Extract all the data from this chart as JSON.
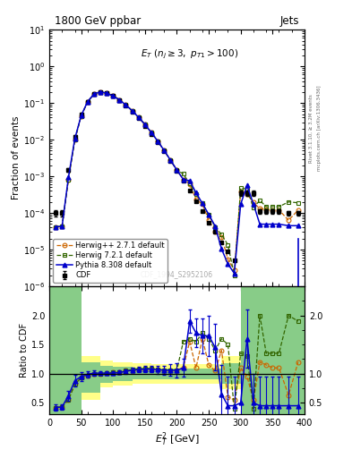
{
  "title_left": "1800 GeV ppbar",
  "title_right": "Jets",
  "annotation": "E_T (n_j ≥ 3, p_{T1}>100)",
  "watermark": "CDF_1994_S2952106",
  "right_label1": "Rivet 3.1.10, ≥ 3.2M events",
  "right_label2": "mcplots.cern.ch [arXiv:1306.3436]",
  "xlabel": "$E_T^2$ [GeV]",
  "ylabel_main": "Fraction of events",
  "ylabel_ratio": "Ratio to CDF",
  "xmin": 0,
  "xmax": 400,
  "cdf_x": [
    10,
    20,
    30,
    40,
    50,
    60,
    70,
    80,
    90,
    100,
    110,
    120,
    130,
    140,
    150,
    160,
    170,
    180,
    190,
    200,
    210,
    220,
    230,
    240,
    250,
    260,
    270,
    280,
    290,
    300,
    310,
    320,
    330,
    340,
    350,
    360,
    375,
    390
  ],
  "cdf_y": [
    0.0001,
    0.0001,
    0.0015,
    0.012,
    0.048,
    0.11,
    0.175,
    0.2,
    0.185,
    0.155,
    0.12,
    0.085,
    0.058,
    0.038,
    0.024,
    0.0145,
    0.0085,
    0.0048,
    0.0026,
    0.0014,
    0.00075,
    0.0004,
    0.00021,
    0.00011,
    5.5e-05,
    3e-05,
    1.6e-05,
    9e-06,
    5e-06,
    0.00035,
    0.00035,
    0.00035,
    0.00011,
    0.00011,
    0.00011,
    0.00011,
    0.0001,
    0.0001
  ],
  "cdf_yerr": [
    2e-05,
    2e-05,
    0.0002,
    0.0015,
    0.005,
    0.008,
    0.01,
    0.01,
    0.01,
    0.008,
    0.006,
    0.004,
    0.0025,
    0.0015,
    0.001,
    0.0006,
    0.00035,
    0.0002,
    0.0001,
    6e-05,
    3e-05,
    1.5e-05,
    8e-06,
    4e-06,
    2e-06,
    1e-06,
    6e-07,
    3e-07,
    2e-07,
    5e-05,
    5e-05,
    5e-05,
    1.5e-05,
    1.5e-05,
    1.5e-05,
    1.5e-05,
    1.5e-05,
    1.5e-05
  ],
  "herwig_color": "#cc6600",
  "herwig7_color": "#336600",
  "pythia_color": "#0000cc",
  "ratio_herwig_x": [
    10,
    20,
    30,
    40,
    50,
    60,
    70,
    80,
    90,
    100,
    110,
    120,
    130,
    140,
    150,
    160,
    170,
    180,
    190,
    200,
    210,
    220,
    230,
    240,
    250,
    260,
    270,
    280,
    290,
    300,
    310,
    320,
    330,
    340,
    350,
    360,
    375,
    390
  ],
  "ratio_herwig_y": [
    0.42,
    0.43,
    0.55,
    0.82,
    0.93,
    0.97,
    1.0,
    1.0,
    1.01,
    1.02,
    1.02,
    1.05,
    1.06,
    1.07,
    1.08,
    1.08,
    1.07,
    1.05,
    1.05,
    1.05,
    1.1,
    1.55,
    1.1,
    1.6,
    1.15,
    1.05,
    1.4,
    0.6,
    0.55,
    1.1,
    0.95,
    0.55,
    1.2,
    1.15,
    1.1,
    1.1,
    0.63,
    1.2
  ],
  "ratio_herwig7_x": [
    10,
    20,
    30,
    40,
    50,
    60,
    70,
    80,
    90,
    100,
    110,
    120,
    130,
    140,
    150,
    160,
    170,
    180,
    190,
    200,
    210,
    220,
    230,
    240,
    250,
    260,
    270,
    280,
    290,
    300,
    310,
    320,
    330,
    340,
    350,
    360,
    375,
    390
  ],
  "ratio_herwig7_y": [
    0.42,
    0.43,
    0.55,
    0.82,
    0.93,
    0.97,
    1.0,
    1.0,
    1.01,
    1.02,
    1.02,
    1.05,
    1.07,
    1.08,
    1.09,
    1.09,
    1.08,
    1.06,
    1.06,
    1.06,
    1.55,
    1.6,
    1.55,
    1.7,
    1.6,
    1.4,
    1.6,
    1.5,
    0.4,
    1.35,
    1.3,
    0.4,
    2.0,
    1.35,
    1.35,
    1.35,
    2.0,
    1.9
  ],
  "ratio_pythia_x": [
    10,
    20,
    30,
    40,
    50,
    60,
    70,
    80,
    90,
    100,
    110,
    120,
    130,
    140,
    150,
    160,
    170,
    180,
    190,
    200,
    210,
    220,
    230,
    240,
    250,
    260,
    270,
    280,
    290,
    300,
    310,
    320,
    330,
    340,
    350,
    360,
    375,
    390
  ],
  "ratio_pythia_y": [
    0.42,
    0.43,
    0.62,
    0.88,
    0.95,
    0.99,
    1.01,
    1.01,
    1.01,
    1.01,
    1.02,
    1.04,
    1.06,
    1.07,
    1.08,
    1.08,
    1.07,
    1.06,
    1.06,
    1.06,
    1.1,
    1.9,
    1.7,
    1.65,
    1.65,
    1.45,
    0.65,
    0.45,
    0.45,
    0.5,
    1.6,
    0.5,
    0.45,
    0.45,
    0.45,
    0.45,
    0.45,
    0.45
  ],
  "ratio_pythia_err": [
    0.05,
    0.05,
    0.08,
    0.1,
    0.08,
    0.05,
    0.04,
    0.03,
    0.03,
    0.03,
    0.03,
    0.04,
    0.04,
    0.05,
    0.05,
    0.06,
    0.07,
    0.08,
    0.1,
    0.12,
    0.15,
    0.2,
    0.25,
    0.3,
    0.35,
    0.4,
    0.5,
    0.5,
    0.5,
    0.5,
    0.5,
    0.5,
    0.5,
    0.5,
    0.5,
    0.5,
    0.5,
    0.5
  ],
  "band_x_edges": [
    0,
    30,
    50,
    80,
    100,
    130,
    160,
    200,
    240,
    270,
    300,
    350,
    400
  ],
  "band_yellow_lo": [
    0.3,
    0.3,
    0.55,
    0.77,
    0.8,
    0.82,
    0.83,
    0.83,
    0.83,
    0.73,
    0.3,
    0.3,
    0.3
  ],
  "band_yellow_hi": [
    2.5,
    2.5,
    1.3,
    1.22,
    1.2,
    1.18,
    1.17,
    1.17,
    1.17,
    1.3,
    2.5,
    2.5,
    2.5
  ],
  "band_green_lo": [
    0.3,
    0.3,
    0.68,
    0.85,
    0.88,
    0.9,
    0.91,
    0.91,
    0.91,
    0.82,
    0.3,
    0.3,
    0.3
  ],
  "band_green_hi": [
    2.5,
    2.5,
    1.2,
    1.13,
    1.12,
    1.1,
    1.09,
    1.09,
    1.09,
    1.18,
    2.5,
    2.5,
    2.5
  ],
  "ratio_ylim": [
    0.3,
    2.5
  ],
  "ratio_yticks": [
    0.5,
    1.0,
    1.5,
    2.0
  ],
  "main_ylim_lo": 1e-06,
  "main_ylim_hi": 10,
  "legend_entries": [
    "CDF",
    "Herwig++ 2.7.1 default",
    "Herwig 7.2.1 default",
    "Pythia 8.308 default"
  ]
}
